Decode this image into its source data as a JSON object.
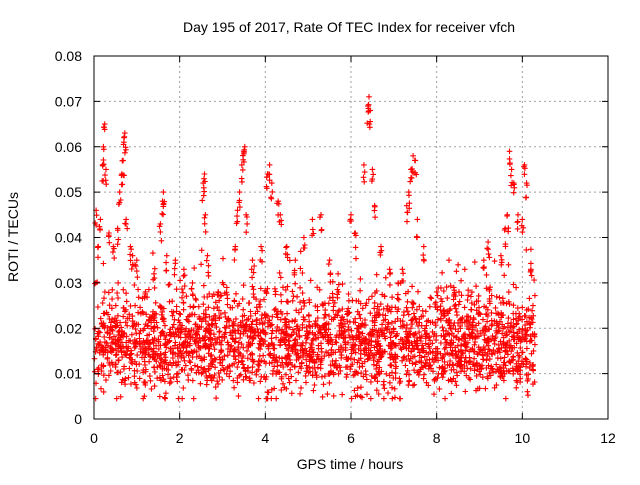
{
  "chart_data": {
    "type": "scatter",
    "title": "Day 195 of 2017, Rate Of TEC Index for receiver vfch",
    "xlabel": "GPS time / hours",
    "ylabel": "ROTI / TECUs",
    "xlim": [
      0,
      12
    ],
    "ylim": [
      0,
      0.08
    ],
    "xticks": [
      0,
      2,
      4,
      6,
      8,
      10,
      12
    ],
    "yticks": [
      0,
      0.01,
      0.02,
      0.03,
      0.04,
      0.05,
      0.06,
      0.07,
      0.08
    ],
    "xtick_labels": [
      "0",
      "2",
      "4",
      "6",
      "8",
      "10",
      "12"
    ],
    "ytick_labels": [
      "0",
      "0.01",
      "0.02",
      "0.03",
      "0.04",
      "0.05",
      "0.06",
      "0.07",
      "0.08"
    ],
    "grid": true,
    "marker": "+",
    "color": "#ff0000",
    "series": [
      {
        "name": "ROTI",
        "x_range": [
          0.0,
          10.3
        ],
        "typical_range": [
          0.008,
          0.03
        ],
        "core_range": [
          0.011,
          0.022
        ],
        "points": [
          [
            0.05,
            0.046
          ],
          [
            0.1,
            0.038
          ],
          [
            0.15,
            0.044
          ],
          [
            0.2,
            0.056
          ],
          [
            0.22,
            0.06
          ],
          [
            0.25,
            0.065
          ],
          [
            0.28,
            0.055
          ],
          [
            0.35,
            0.041
          ],
          [
            0.45,
            0.038
          ],
          [
            0.55,
            0.042
          ],
          [
            0.6,
            0.05
          ],
          [
            0.65,
            0.054
          ],
          [
            0.68,
            0.057
          ],
          [
            0.7,
            0.062
          ],
          [
            0.72,
            0.063
          ],
          [
            0.75,
            0.044
          ],
          [
            0.85,
            0.038
          ],
          [
            0.9,
            0.036
          ],
          [
            1.0,
            0.035
          ],
          [
            1.2,
            0.028
          ],
          [
            1.4,
            0.032
          ],
          [
            1.55,
            0.043
          ],
          [
            1.6,
            0.048
          ],
          [
            1.62,
            0.05
          ],
          [
            1.7,
            0.036
          ],
          [
            1.9,
            0.035
          ],
          [
            2.1,
            0.033
          ],
          [
            2.3,
            0.03
          ],
          [
            2.55,
            0.052
          ],
          [
            2.58,
            0.054
          ],
          [
            2.6,
            0.045
          ],
          [
            2.65,
            0.036
          ],
          [
            2.9,
            0.028
          ],
          [
            3.1,
            0.029
          ],
          [
            3.3,
            0.038
          ],
          [
            3.35,
            0.046
          ],
          [
            3.4,
            0.05
          ],
          [
            3.45,
            0.056
          ],
          [
            3.5,
            0.059
          ],
          [
            3.52,
            0.06
          ],
          [
            3.55,
            0.045
          ],
          [
            3.7,
            0.035
          ],
          [
            3.9,
            0.038
          ],
          [
            4.05,
            0.054
          ],
          [
            4.1,
            0.056
          ],
          [
            4.15,
            0.052
          ],
          [
            4.3,
            0.048
          ],
          [
            4.35,
            0.045
          ],
          [
            4.5,
            0.038
          ],
          [
            4.7,
            0.035
          ],
          [
            4.9,
            0.04
          ],
          [
            5.1,
            0.044
          ],
          [
            5.3,
            0.045
          ],
          [
            5.5,
            0.035
          ],
          [
            5.7,
            0.032
          ],
          [
            6.0,
            0.045
          ],
          [
            6.1,
            0.041
          ],
          [
            6.3,
            0.056
          ],
          [
            6.4,
            0.069
          ],
          [
            6.42,
            0.071
          ],
          [
            6.45,
            0.068
          ],
          [
            6.5,
            0.055
          ],
          [
            6.55,
            0.047
          ],
          [
            6.7,
            0.038
          ],
          [
            6.9,
            0.033
          ],
          [
            7.1,
            0.03
          ],
          [
            7.2,
            0.033
          ],
          [
            7.3,
            0.047
          ],
          [
            7.35,
            0.05
          ],
          [
            7.4,
            0.055
          ],
          [
            7.45,
            0.058
          ],
          [
            7.5,
            0.057
          ],
          [
            7.55,
            0.044
          ],
          [
            7.7,
            0.038
          ],
          [
            8.0,
            0.028
          ],
          [
            8.4,
            0.029
          ],
          [
            8.8,
            0.027
          ],
          [
            9.1,
            0.035
          ],
          [
            9.2,
            0.039
          ],
          [
            9.5,
            0.036
          ],
          [
            9.6,
            0.042
          ],
          [
            9.65,
            0.045
          ],
          [
            9.7,
            0.059
          ],
          [
            9.75,
            0.055
          ],
          [
            9.8,
            0.052
          ],
          [
            9.9,
            0.045
          ],
          [
            10.0,
            0.044
          ],
          [
            10.05,
            0.056
          ],
          [
            10.1,
            0.052
          ],
          [
            10.2,
            0.033
          ],
          [
            10.25,
            0.025
          ]
        ]
      }
    ]
  }
}
